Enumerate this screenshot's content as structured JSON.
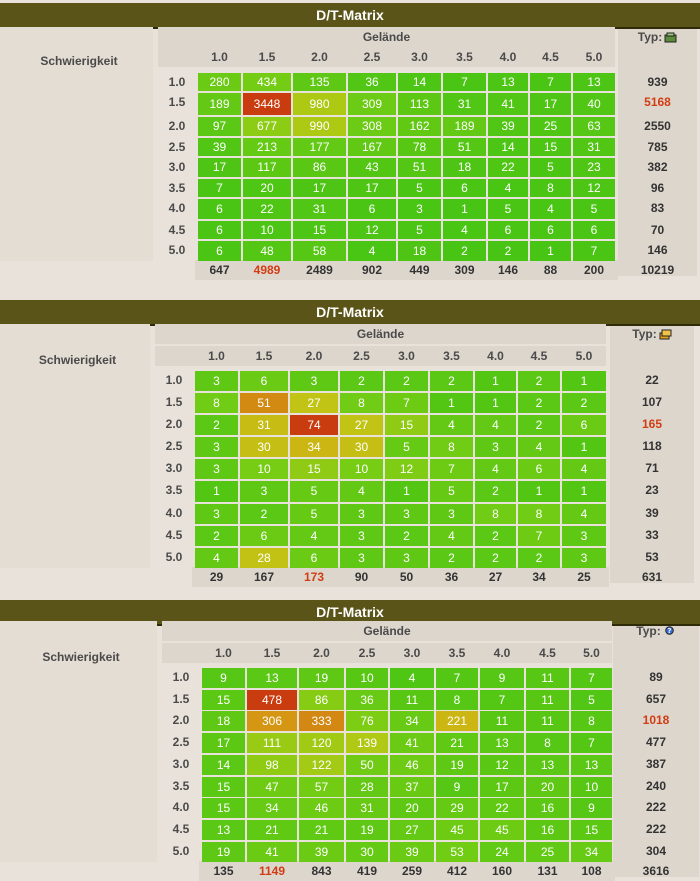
{
  "tables": [
    {
      "title": "D/T-Matrix",
      "terrain_label": "Gelände",
      "difficulty_label": "Schwierigkeit",
      "type_label": "Typ:",
      "type_icon": "traditional-cache-icon",
      "columns": [
        "1.0",
        "1.5",
        "2.0",
        "2.5",
        "3.0",
        "3.5",
        "4.0",
        "4.5",
        "5.0"
      ],
      "rows": [
        "1.0",
        "1.5",
        "2.0",
        "2.5",
        "3.0",
        "3.5",
        "4.0",
        "4.5",
        "5.0"
      ],
      "cells": [
        [
          280,
          434,
          135,
          36,
          14,
          7,
          13,
          7,
          13
        ],
        [
          189,
          3448,
          980,
          309,
          113,
          31,
          41,
          17,
          40
        ],
        [
          97,
          677,
          990,
          308,
          162,
          189,
          39,
          25,
          63
        ],
        [
          39,
          213,
          177,
          167,
          78,
          51,
          14,
          15,
          31
        ],
        [
          17,
          117,
          86,
          43,
          51,
          18,
          22,
          5,
          23
        ],
        [
          7,
          20,
          17,
          17,
          5,
          6,
          4,
          8,
          12
        ],
        [
          6,
          22,
          31,
          6,
          3,
          1,
          5,
          4,
          5
        ],
        [
          6,
          10,
          15,
          12,
          5,
          4,
          6,
          6,
          6
        ],
        [
          6,
          48,
          58,
          4,
          18,
          2,
          2,
          1,
          7
        ]
      ],
      "row_totals": [
        "939",
        "5168",
        "2550",
        "785",
        "382",
        "96",
        "83",
        "70",
        "146"
      ],
      "col_totals": [
        "647",
        "4989",
        "2489",
        "902",
        "449",
        "309",
        "146",
        "88",
        "200"
      ],
      "grand_total": "10219",
      "highlight_row": 1,
      "highlight_col": 1
    },
    {
      "title": "D/T-Matrix",
      "terrain_label": "Gelände",
      "difficulty_label": "Schwierigkeit",
      "type_label": "Typ:",
      "type_icon": "multi-cache-icon",
      "columns": [
        "1.0",
        "1.5",
        "2.0",
        "2.5",
        "3.0",
        "3.5",
        "4.0",
        "4.5",
        "5.0"
      ],
      "rows": [
        "1.0",
        "1.5",
        "2.0",
        "2.5",
        "3.0",
        "3.5",
        "4.0",
        "4.5",
        "5.0"
      ],
      "cells": [
        [
          3,
          6,
          3,
          2,
          2,
          2,
          1,
          2,
          1
        ],
        [
          8,
          51,
          27,
          8,
          7,
          1,
          1,
          2,
          2
        ],
        [
          2,
          31,
          74,
          27,
          15,
          4,
          4,
          2,
          6
        ],
        [
          3,
          30,
          34,
          30,
          5,
          8,
          3,
          4,
          1
        ],
        [
          3,
          10,
          15,
          10,
          12,
          7,
          4,
          6,
          4
        ],
        [
          1,
          3,
          5,
          4,
          1,
          5,
          2,
          1,
          1
        ],
        [
          3,
          2,
          5,
          3,
          3,
          3,
          8,
          8,
          4
        ],
        [
          2,
          6,
          4,
          3,
          2,
          4,
          2,
          7,
          3
        ],
        [
          4,
          28,
          6,
          3,
          3,
          2,
          2,
          2,
          3
        ]
      ],
      "row_totals": [
        "22",
        "107",
        "165",
        "118",
        "71",
        "23",
        "39",
        "33",
        "53"
      ],
      "col_totals": [
        "29",
        "167",
        "173",
        "90",
        "50",
        "36",
        "27",
        "34",
        "25"
      ],
      "grand_total": "631",
      "highlight_row": 2,
      "highlight_col": 2
    },
    {
      "title": "D/T-Matrix",
      "terrain_label": "Gelände",
      "difficulty_label": "Schwierigkeit",
      "type_label": "Typ:",
      "type_icon": "mystery-cache-icon",
      "columns": [
        "1.0",
        "1.5",
        "2.0",
        "2.5",
        "3.0",
        "3.5",
        "4.0",
        "4.5",
        "5.0"
      ],
      "rows": [
        "1.0",
        "1.5",
        "2.0",
        "2.5",
        "3.0",
        "3.5",
        "4.0",
        "4.5",
        "5.0"
      ],
      "cells": [
        [
          9,
          13,
          19,
          10,
          4,
          7,
          9,
          11,
          7
        ],
        [
          15,
          478,
          86,
          36,
          11,
          8,
          7,
          11,
          5
        ],
        [
          18,
          306,
          333,
          76,
          34,
          221,
          11,
          11,
          8
        ],
        [
          17,
          111,
          120,
          139,
          41,
          21,
          13,
          8,
          7
        ],
        [
          14,
          98,
          122,
          50,
          46,
          19,
          12,
          13,
          13
        ],
        [
          15,
          47,
          57,
          28,
          37,
          9,
          17,
          20,
          10
        ],
        [
          15,
          34,
          46,
          31,
          20,
          29,
          22,
          16,
          9
        ],
        [
          13,
          21,
          21,
          19,
          27,
          45,
          45,
          16,
          15
        ],
        [
          19,
          41,
          39,
          30,
          39,
          53,
          24,
          25,
          34
        ]
      ],
      "row_totals": [
        "89",
        "657",
        "1018",
        "477",
        "387",
        "240",
        "222",
        "222",
        "304"
      ],
      "col_totals": [
        "135",
        "1149",
        "843",
        "419",
        "259",
        "412",
        "160",
        "131",
        "108"
      ],
      "grand_total": "3616",
      "highlight_row": 2,
      "highlight_col": 1
    }
  ],
  "colors": {
    "title_bar": "#5b5418",
    "highlight_total": "#d23c13",
    "header_bg": "#ddd6cd",
    "page_bg": "#e8e2da"
  }
}
